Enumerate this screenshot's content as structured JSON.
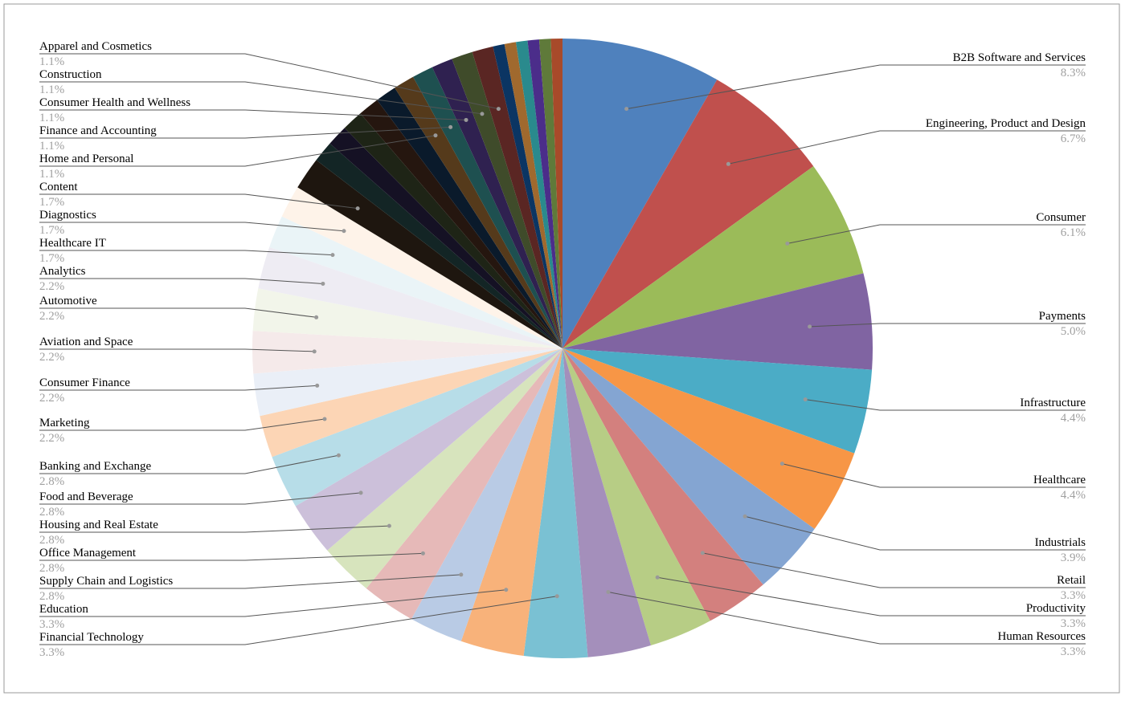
{
  "chart_data": {
    "type": "pie",
    "categories": [
      "B2B Software and Services",
      "Engineering, Product and Design",
      "Consumer",
      "Payments",
      "Infrastructure",
      "Healthcare",
      "Industrials",
      "Retail",
      "Productivity",
      "Human Resources",
      "Financial Technology",
      "Education",
      "Supply Chain and Logistics",
      "Office Management",
      "Housing and Real Estate",
      "Food and Beverage",
      "Banking and Exchange",
      "Marketing",
      "Consumer Finance",
      "Aviation and Space",
      "Automotive",
      "Analytics",
      "Healthcare IT",
      "Diagnostics",
      "Content",
      null,
      null,
      null,
      null,
      null,
      "Home and Personal",
      "Finance and Accounting",
      "Consumer Health and Wellness",
      "Construction",
      "Apparel and Cosmetics",
      null,
      null,
      null,
      null,
      null,
      null
    ],
    "values": [
      8.3,
      6.7,
      6.1,
      5.0,
      4.4,
      4.4,
      3.9,
      3.3,
      3.3,
      3.3,
      3.3,
      3.3,
      2.8,
      2.8,
      2.8,
      2.8,
      2.8,
      2.2,
      2.2,
      2.2,
      2.2,
      2.2,
      1.7,
      1.7,
      1.7,
      1.1,
      1.1,
      1.1,
      1.1,
      1.1,
      1.1,
      1.1,
      1.1,
      1.1,
      1.1,
      0.6,
      0.6,
      0.6,
      0.6,
      0.6,
      0.6
    ],
    "value_labels": [
      "8.3%",
      "6.7%",
      "6.1%",
      "5.0%",
      "4.4%",
      "4.4%",
      "3.9%",
      "3.3%",
      "3.3%",
      "3.3%",
      "3.3%",
      "3.3%",
      "2.8%",
      "2.8%",
      "2.8%",
      "2.8%",
      "2.8%",
      "2.2%",
      "2.2%",
      "2.2%",
      "2.2%",
      "2.2%",
      "1.7%",
      "1.7%",
      "1.7%",
      null,
      null,
      null,
      null,
      null,
      "1.1%",
      "1.1%",
      "1.1%",
      "1.1%",
      "1.1%",
      null,
      null,
      null,
      null,
      null,
      null
    ],
    "colors": [
      "#4f81bd",
      "#c0504d",
      "#9bbb59",
      "#8064a2",
      "#4bacc6",
      "#f79646",
      "#84a5d2",
      "#d3807e",
      "#b7cd85",
      "#a48fbb",
      "#7ac1d3",
      "#f8b27a",
      "#b9cbe5",
      "#e6b9b8",
      "#d7e4bd",
      "#ccc0da",
      "#b7dde8",
      "#fcd5b5",
      "#eaeff7",
      "#f5eaea",
      "#f2f5ea",
      "#eeecf3",
      "#eaf4f7",
      "#fef3e9",
      "#1e160f",
      "#132525",
      "#151124",
      "#1e2416",
      "#25160f",
      "#0a1a2b",
      "#553a1b",
      "#1e5050",
      "#2f2150",
      "#3f4b2a",
      "#5a2623",
      "#0b3563",
      "#a0692e",
      "#2a8a8d",
      "#4b2d8a",
      "#5f7a3a",
      "#a84a2a"
    ]
  }
}
